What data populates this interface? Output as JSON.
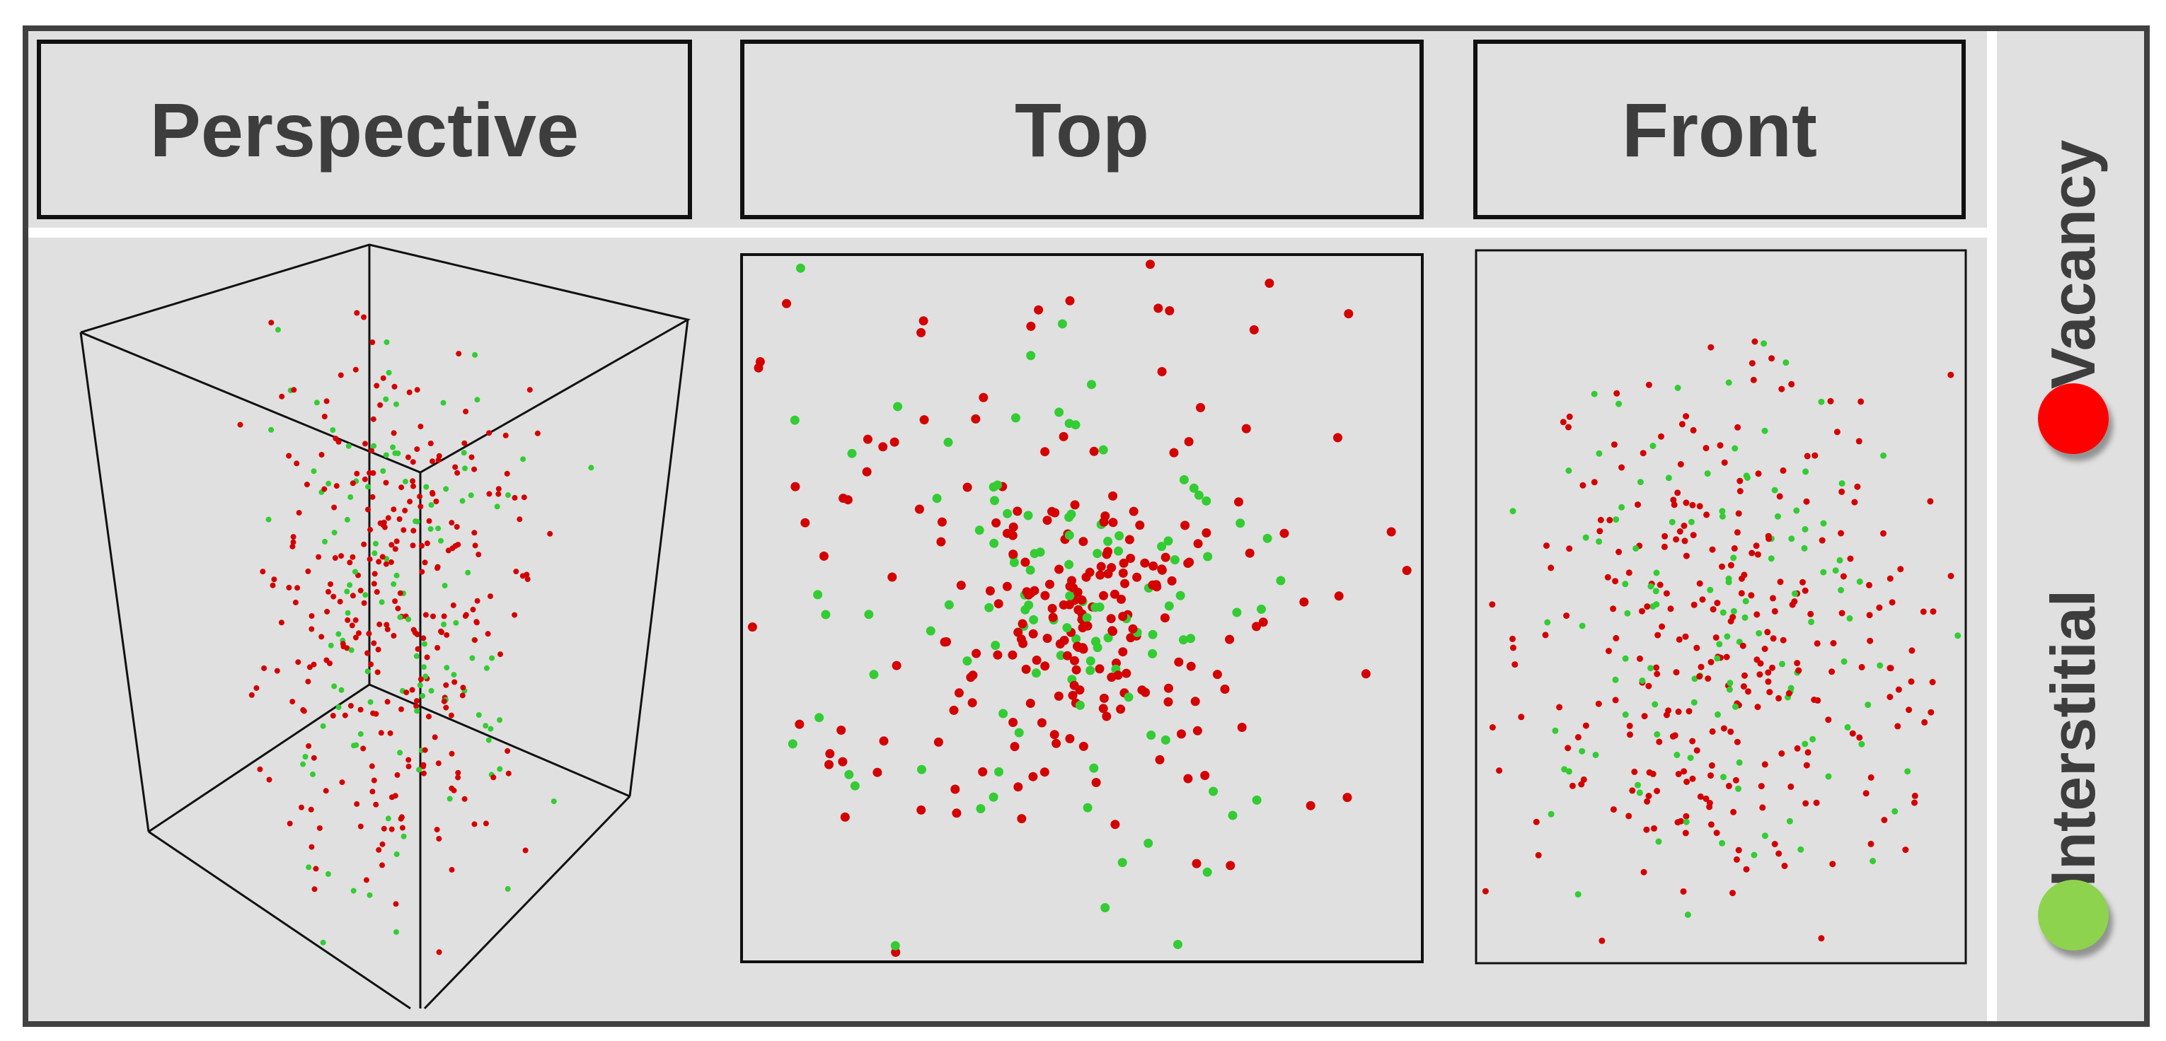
{
  "panels": {
    "perspective": {
      "title": "Perspective"
    },
    "top": {
      "title": "Top"
    },
    "front": {
      "title": "Front"
    }
  },
  "legend": {
    "vacancy": {
      "label": "Vacancy",
      "color": "#ff0000"
    },
    "interstitial": {
      "label": "Interstitial",
      "color": "#8dd34d"
    }
  },
  "colors": {
    "vacancy_point": "#d40000",
    "interstitial_point": "#33cc33",
    "frame": "#404040",
    "background": "#e0e0e0"
  },
  "icons": [
    "vacancy-dot-icon",
    "interstitial-dot-icon"
  ]
}
